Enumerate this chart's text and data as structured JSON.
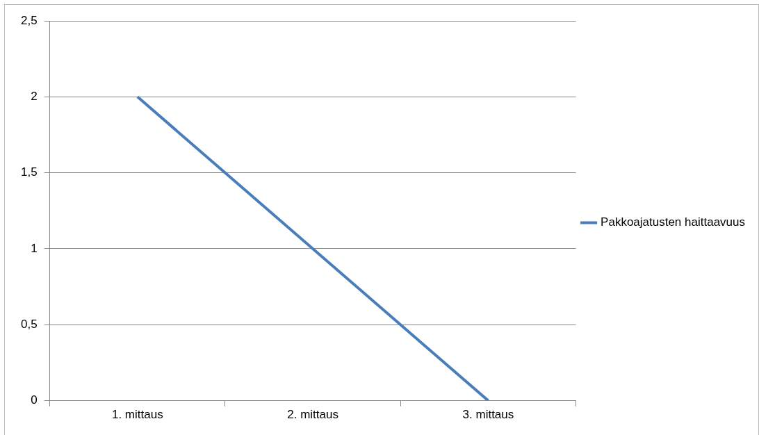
{
  "chart_data": {
    "type": "line",
    "categories": [
      "1. mittaus",
      "2. mittaus",
      "3. mittaus"
    ],
    "series": [
      {
        "name": "Pakkoajatusten haittaavuus",
        "color": "#4a7ebb",
        "values": [
          2,
          1,
          0
        ]
      }
    ],
    "ylim": [
      0,
      2.5
    ],
    "yticks": [
      0,
      {
        "value": 0.5,
        "label": "0,5"
      },
      1,
      {
        "value": 1.5,
        "label": "1,5"
      },
      2,
      {
        "value": 2.5,
        "label": "2,5"
      }
    ],
    "grid": "y",
    "legend": "right",
    "marker": "none",
    "line_style": "solid"
  }
}
